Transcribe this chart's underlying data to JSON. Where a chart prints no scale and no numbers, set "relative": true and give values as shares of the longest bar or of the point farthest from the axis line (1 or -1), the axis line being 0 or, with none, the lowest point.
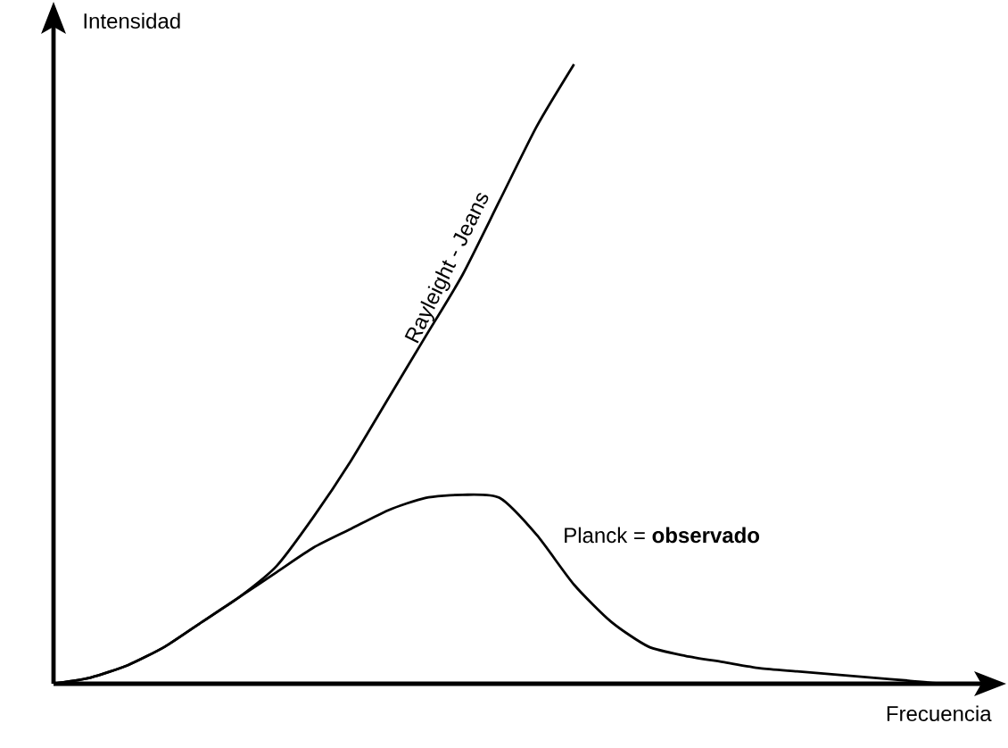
{
  "chart_data": {
    "type": "line",
    "relative": true,
    "xlabel": "Frecuencia",
    "ylabel": "Intensidad",
    "marker": "none",
    "line_style": "solid",
    "categories": [
      null,
      null,
      null,
      null,
      null,
      null,
      null,
      null,
      null,
      null,
      null,
      null,
      null,
      null,
      null,
      null,
      null,
      null,
      null,
      null,
      null,
      null,
      null,
      null,
      null,
      null
    ],
    "series": [
      {
        "name": "Rayleight - Jeans",
        "color": "#000000",
        "values": [
          0,
          0.01,
          0.03,
          0.06,
          0.1,
          0.14,
          0.19,
          0.27,
          0.36,
          0.46,
          0.56,
          0.66,
          0.78,
          0.9,
          1.0,
          null,
          null,
          null,
          null,
          null,
          null,
          null,
          null,
          null,
          null,
          null
        ]
      },
      {
        "name": "Planck = **observado**",
        "color": "#000000",
        "values": [
          0,
          0.01,
          0.03,
          0.06,
          0.1,
          0.14,
          0.18,
          0.22,
          0.25,
          0.28,
          0.3,
          0.305,
          0.3,
          0.24,
          0.16,
          0.1,
          0.06,
          0.045,
          0.035,
          0.025,
          0.02,
          0.015,
          0.01,
          0.005,
          0,
          0
        ]
      }
    ]
  }
}
